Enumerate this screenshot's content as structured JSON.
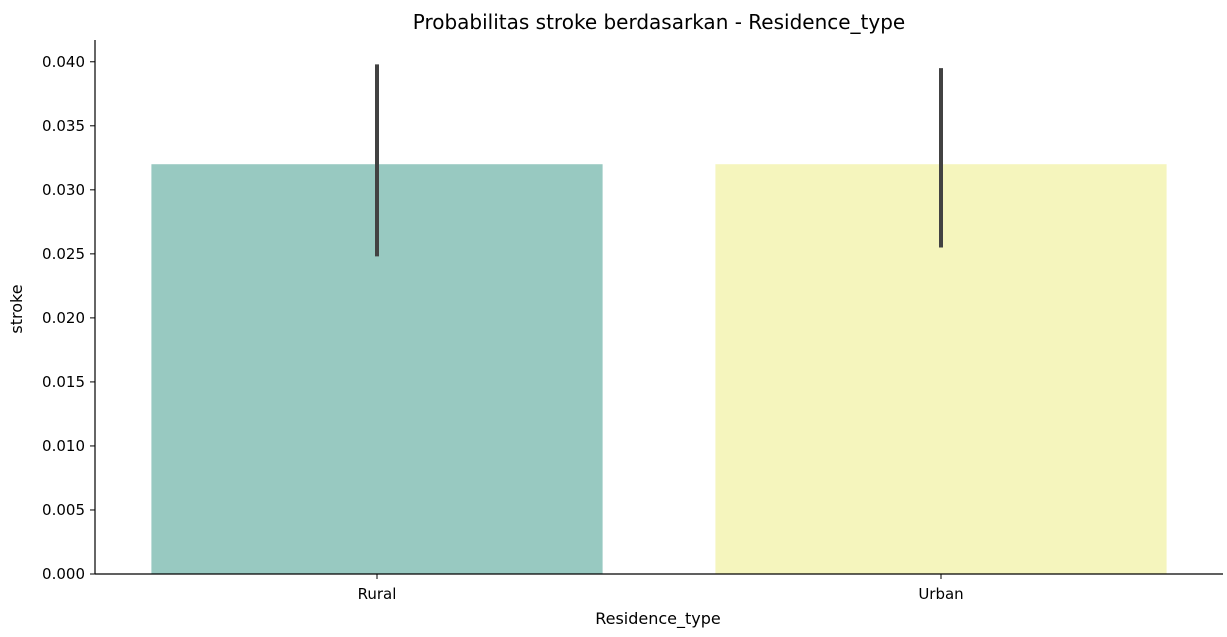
{
  "chart_data": {
    "type": "bar",
    "title": "Probabilitas stroke berdasarkan - Residence_type",
    "xlabel": "Residence_type",
    "ylabel": "stroke",
    "categories": [
      "Rural",
      "Urban"
    ],
    "values": [
      0.032,
      0.032
    ],
    "error_bars": [
      {
        "low": 0.0248,
        "high": 0.0398
      },
      {
        "low": 0.0255,
        "high": 0.0395
      }
    ],
    "colors": [
      "#98c9c1",
      "#f5f5bd"
    ],
    "errorbar_color": "#424242",
    "ylim": [
      0,
      0.0417
    ],
    "yticks": [
      0.0,
      0.005,
      0.01,
      0.015,
      0.02,
      0.025,
      0.03,
      0.035,
      0.04
    ],
    "ytick_labels": [
      "0.000",
      "0.005",
      "0.010",
      "0.015",
      "0.020",
      "0.025",
      "0.030",
      "0.035",
      "0.040"
    ],
    "grid": false,
    "legend": "none"
  }
}
